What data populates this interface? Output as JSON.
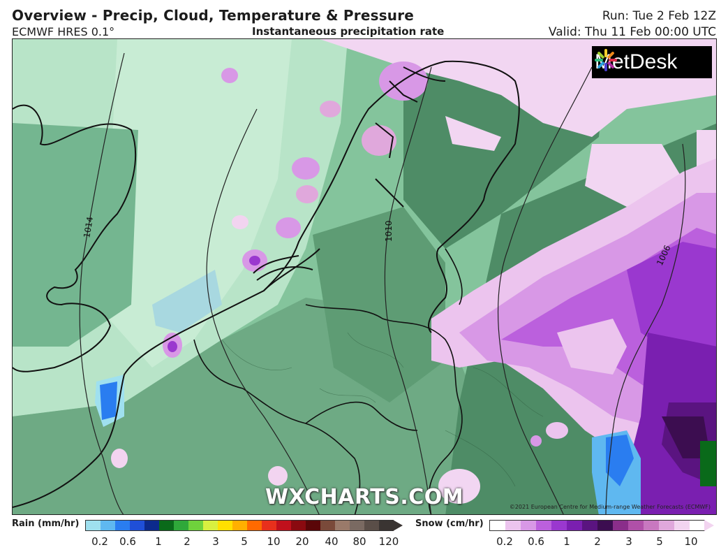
{
  "header": {
    "title": "Overview - Precip, Cloud, Temperature & Pressure",
    "model": "ECMWF HRES 0.1°",
    "subtitle": "Instantaneous precipitation rate",
    "run": "Run: Tue 2 Feb 12Z",
    "valid": "Valid: Thu 11 Feb 00:00 UTC"
  },
  "map": {
    "logo_text": "MetDesk",
    "watermark": "WXCHARTS.COM",
    "copyright": "©2021 European Centre for Medium-range Weather Forecasts (ECMWF)",
    "isobar_labels": [
      "1014",
      "1010",
      "1006"
    ]
  },
  "legend": {
    "rain": {
      "label": "Rain (mm/hr)",
      "ticks": [
        "0.2",
        "0.6",
        "1",
        "2",
        "3",
        "5",
        "10",
        "20",
        "40",
        "80",
        "120"
      ],
      "colors": [
        "#9fe0ef",
        "#5fb8f0",
        "#2a7df0",
        "#1f4fd8",
        "#0c2a8c",
        "#0a6a1a",
        "#2fa83a",
        "#6fd23c",
        "#d8f040",
        "#ffe000",
        "#ffb000",
        "#ff6a00",
        "#e8301c",
        "#c0101c",
        "#8a0a10",
        "#5a0608",
        "#7a4a3a",
        "#9a7a6a",
        "#7a6a62",
        "#5a4e48",
        "#3a3432"
      ]
    },
    "snow": {
      "label": "Snow (cm/hr)",
      "ticks": [
        "0.2",
        "0.6",
        "1",
        "2",
        "3",
        "5",
        "10"
      ],
      "colors": [
        "#ffffff",
        "#ecc4ee",
        "#d898e6",
        "#bb60dd",
        "#9a38cf",
        "#7a1fb0",
        "#5a1480",
        "#3c0d50",
        "#8a2e8a",
        "#b050a8",
        "#c878c0",
        "#e0a8dc",
        "#f2d4f0",
        "#ffffff"
      ]
    }
  }
}
